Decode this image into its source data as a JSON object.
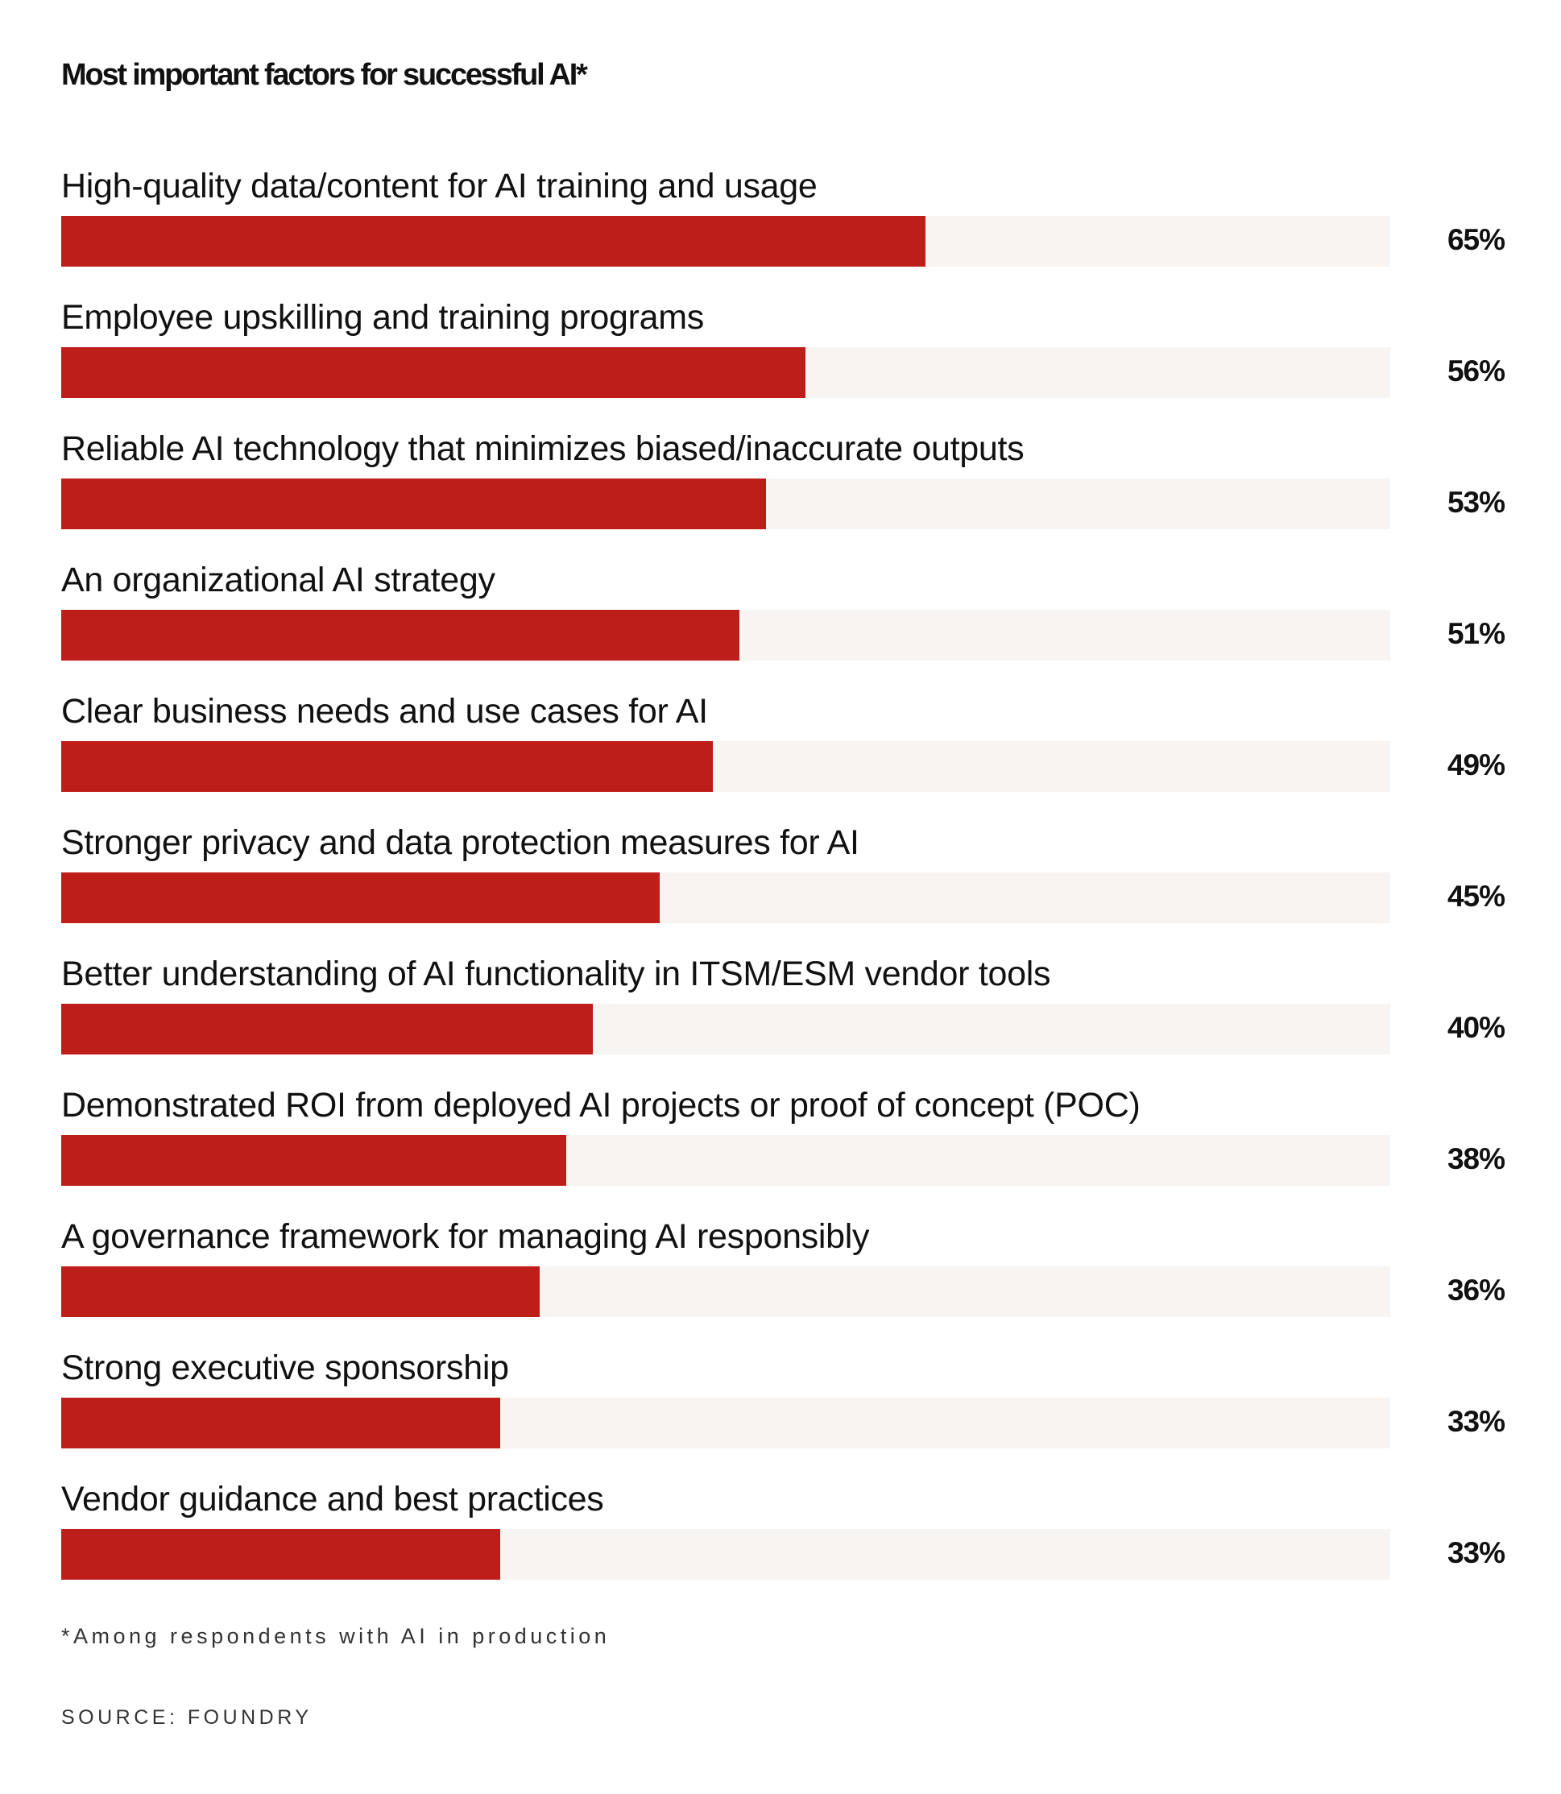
{
  "chart_data": {
    "type": "bar",
    "orientation": "horizontal",
    "title": "Most important factors for successful AI*",
    "categories": [
      "High-quality data/content for AI training and usage",
      "Employee upskilling and training programs",
      "Reliable AI technology that minimizes biased/inaccurate outputs",
      "An organizational AI strategy",
      "Clear business needs and use cases for AI",
      "Stronger privacy and data protection measures for AI",
      "Better understanding of AI functionality in ITSM/ESM vendor tools",
      "Demonstrated ROI from deployed AI projects or proof of concept (POC)",
      "A governance framework for managing AI responsibly",
      "Strong executive sponsorship",
      "Vendor guidance and best practices"
    ],
    "values": [
      65,
      56,
      53,
      51,
      49,
      45,
      40,
      38,
      36,
      33,
      33
    ],
    "value_labels": [
      "65%",
      "56%",
      "53%",
      "51%",
      "49%",
      "45%",
      "40%",
      "38%",
      "36%",
      "33%",
      "33%"
    ],
    "xlim": [
      0,
      100
    ],
    "grid": false,
    "colors": {
      "bar": "#be1e1a",
      "track": "#f8f4f1"
    },
    "footnote": "*Among respondents with AI in production",
    "source": "SOURCE: FOUNDRY"
  }
}
